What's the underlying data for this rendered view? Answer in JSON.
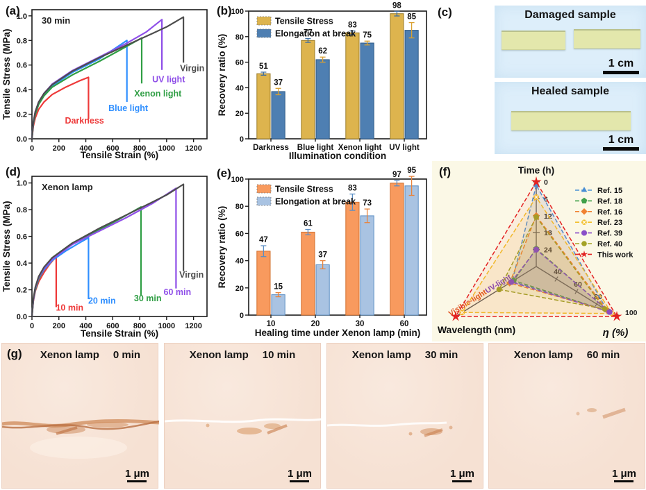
{
  "panel_letters": {
    "a": "(a)",
    "b": "(b)",
    "c": "(c)",
    "d": "(d)",
    "e": "(e)",
    "f": "(f)",
    "g": "(g)"
  },
  "chart_data": [
    {
      "id": "a",
      "type": "line",
      "annotation": "30 min",
      "xlabel": "Tensile Strain (%)",
      "ylabel": "Tensile Stress (MPa)",
      "xlim": [
        0,
        1300
      ],
      "ylim": [
        0,
        1.05
      ],
      "xticks": [
        0,
        200,
        400,
        600,
        800,
        1000,
        1200
      ],
      "yticks": [
        "0.0",
        "0.2",
        "0.4",
        "0.6",
        "0.8",
        "1.0"
      ],
      "series": [
        {
          "name": "Darkness",
          "color": "#ee3a3a",
          "drop_to": 0.16,
          "label_at": [
            390,
            0.125
          ],
          "points": [
            [
              0,
              0
            ],
            [
              10,
              0.1
            ],
            [
              25,
              0.17
            ],
            [
              50,
              0.24
            ],
            [
              90,
              0.3
            ],
            [
              150,
              0.36
            ],
            [
              250,
              0.42
            ],
            [
              350,
              0.47
            ],
            [
              420,
              0.5
            ]
          ]
        },
        {
          "name": "Blue light",
          "color": "#2f8fff",
          "drop_to": 0.3,
          "label_at": [
            715,
            0.225
          ],
          "points": [
            [
              0,
              0
            ],
            [
              10,
              0.12
            ],
            [
              25,
              0.21
            ],
            [
              50,
              0.29
            ],
            [
              90,
              0.36
            ],
            [
              150,
              0.43
            ],
            [
              300,
              0.54
            ],
            [
              500,
              0.65
            ],
            [
              705,
              0.8
            ]
          ]
        },
        {
          "name": "Xenon light",
          "color": "#2f9e44",
          "drop_to": 0.45,
          "label_at": [
            935,
            0.345
          ],
          "points": [
            [
              0,
              0
            ],
            [
              10,
              0.12
            ],
            [
              25,
              0.2
            ],
            [
              50,
              0.28
            ],
            [
              90,
              0.35
            ],
            [
              150,
              0.42
            ],
            [
              300,
              0.52
            ],
            [
              500,
              0.63
            ],
            [
              650,
              0.72
            ],
            [
              815,
              0.82
            ]
          ]
        },
        {
          "name": "UV light",
          "color": "#8f4fe8",
          "drop_to": 0.56,
          "label_at": [
            1015,
            0.46
          ],
          "points": [
            [
              0,
              0
            ],
            [
              10,
              0.13
            ],
            [
              25,
              0.22
            ],
            [
              50,
              0.3
            ],
            [
              90,
              0.37
            ],
            [
              150,
              0.445
            ],
            [
              300,
              0.555
            ],
            [
              500,
              0.665
            ],
            [
              700,
              0.775
            ],
            [
              850,
              0.87
            ],
            [
              965,
              0.97
            ]
          ]
        },
        {
          "name": "Virgin",
          "color": "#4d4d4d",
          "drop_to": 0.62,
          "label_at": [
            1190,
            0.55
          ],
          "points": [
            [
              0,
              0
            ],
            [
              10,
              0.13
            ],
            [
              25,
              0.22
            ],
            [
              50,
              0.3
            ],
            [
              90,
              0.37
            ],
            [
              150,
              0.44
            ],
            [
              300,
              0.55
            ],
            [
              500,
              0.66
            ],
            [
              700,
              0.76
            ],
            [
              900,
              0.86
            ],
            [
              1000,
              0.91
            ],
            [
              1125,
              0.99
            ]
          ]
        }
      ]
    },
    {
      "id": "b",
      "type": "bar",
      "xlabel": "Illumination condition",
      "ylabel": "Recovery ratio (%)",
      "ylim": [
        0,
        100
      ],
      "yticks": [
        0,
        20,
        40,
        60,
        80,
        100
      ],
      "categories": [
        "Darkness",
        "Blue light",
        "Xenon light",
        "UV light"
      ],
      "series": [
        {
          "name": "Tensile Stress",
          "color": "#ddb44e",
          "edge": "#9c7d2a",
          "err_color": "#3f6ea0",
          "values": [
            51,
            77,
            83,
            98
          ],
          "errors": [
            1.2,
            1.5,
            1.5,
            1.8
          ]
        },
        {
          "name": "Elongation at break",
          "color": "#4e7fb2",
          "edge": "#2f5a86",
          "err_color": "#d9a030",
          "values": [
            37,
            62,
            75,
            85
          ],
          "errors": [
            2.5,
            2,
            1.5,
            6
          ]
        }
      ]
    },
    {
      "id": "d",
      "type": "line",
      "annotation": "Xenon lamp",
      "xlabel": "Tensile Strain (%)",
      "ylabel": "Tensile Stress (MPa)",
      "xlim": [
        0,
        1300
      ],
      "ylim": [
        0,
        1.05
      ],
      "xticks": [
        0,
        200,
        400,
        600,
        800,
        1000,
        1200
      ],
      "yticks": [
        "0.0",
        "0.2",
        "0.4",
        "0.6",
        "0.8",
        "1.0"
      ],
      "series": [
        {
          "name": "10 min",
          "color": "#ee3a3a",
          "drop_to": 0.07,
          "label_at": [
            280,
            0.045
          ],
          "points": [
            [
              0,
              0
            ],
            [
              10,
              0.11
            ],
            [
              25,
              0.19
            ],
            [
              50,
              0.26
            ],
            [
              90,
              0.33
            ],
            [
              130,
              0.39
            ],
            [
              180,
              0.45
            ]
          ]
        },
        {
          "name": "20 min",
          "color": "#2f8fff",
          "drop_to": 0.13,
          "label_at": [
            520,
            0.095
          ],
          "points": [
            [
              0,
              0
            ],
            [
              10,
              0.12
            ],
            [
              25,
              0.2
            ],
            [
              50,
              0.28
            ],
            [
              90,
              0.35
            ],
            [
              150,
              0.42
            ],
            [
              250,
              0.49
            ],
            [
              350,
              0.55
            ],
            [
              420,
              0.59
            ]
          ]
        },
        {
          "name": "30 min",
          "color": "#2f9e44",
          "drop_to": 0.16,
          "label_at": [
            860,
            0.115
          ],
          "points": [
            [
              0,
              0
            ],
            [
              10,
              0.12
            ],
            [
              25,
              0.2
            ],
            [
              50,
              0.28
            ],
            [
              90,
              0.36
            ],
            [
              150,
              0.44
            ],
            [
              300,
              0.55
            ],
            [
              500,
              0.65
            ],
            [
              650,
              0.73
            ],
            [
              810,
              0.82
            ]
          ]
        },
        {
          "name": "60 min",
          "color": "#8f4fe8",
          "drop_to": 0.21,
          "label_at": [
            1080,
            0.16
          ],
          "points": [
            [
              0,
              0
            ],
            [
              10,
              0.12
            ],
            [
              25,
              0.21
            ],
            [
              50,
              0.29
            ],
            [
              90,
              0.36
            ],
            [
              150,
              0.43
            ],
            [
              300,
              0.54
            ],
            [
              500,
              0.64
            ],
            [
              700,
              0.74
            ],
            [
              900,
              0.85
            ],
            [
              1070,
              0.96
            ]
          ]
        },
        {
          "name": "Virgin",
          "color": "#4d4d4d",
          "drop_to": 0.34,
          "label_at": [
            1185,
            0.29
          ],
          "points": [
            [
              0,
              0
            ],
            [
              10,
              0.13
            ],
            [
              25,
              0.22
            ],
            [
              50,
              0.3
            ],
            [
              90,
              0.37
            ],
            [
              150,
              0.44
            ],
            [
              300,
              0.55
            ],
            [
              500,
              0.66
            ],
            [
              700,
              0.76
            ],
            [
              900,
              0.86
            ],
            [
              1000,
              0.91
            ],
            [
              1125,
              0.99
            ]
          ]
        }
      ]
    },
    {
      "id": "e",
      "type": "bar",
      "xlabel": "Healing time under Xenon lamp (min)",
      "ylabel": "Recovery ratio (%)",
      "ylim": [
        0,
        100
      ],
      "yticks": [
        0,
        20,
        40,
        60,
        80,
        100
      ],
      "categories": [
        "10",
        "20",
        "30",
        "60"
      ],
      "series": [
        {
          "name": "Tensile Stress",
          "color": "#f89a5e",
          "edge": "#d2702e",
          "err_color": "#5b8ec4",
          "values": [
            47,
            61,
            83,
            97
          ],
          "errors": [
            4,
            2,
            6,
            2
          ]
        },
        {
          "name": "Elongation at break",
          "color": "#a9c3e2",
          "edge": "#5b8ec4",
          "err_color": "#e8833c",
          "values": [
            15,
            37,
            73,
            95
          ],
          "errors": [
            1.5,
            3,
            5,
            7
          ]
        }
      ]
    },
    {
      "id": "f",
      "type": "radar",
      "background": "#fbf8e6",
      "axes": [
        {
          "label": "Time (h)",
          "ticks": [
            0,
            6,
            12,
            18,
            24
          ]
        },
        {
          "label": "Wavelength (nm)",
          "sub_labels": [
            {
              "text": "Visible-light",
              "color": "#e0501e"
            },
            {
              "text": "UV-light",
              "color": "#7a3fc0"
            }
          ]
        },
        {
          "label": "η (%)",
          "ticks": [
            40,
            60,
            80,
            100
          ]
        }
      ],
      "series": [
        {
          "name": "Ref. 15",
          "color": "#4a8fd4",
          "marker": "triangle",
          "time_h": 1,
          "wavelength": "UV-light",
          "eta_pct": 90,
          "poly": [
            0.96,
            0.3,
            0.88
          ]
        },
        {
          "name": "Ref. 18",
          "color": "#3fa04a",
          "marker": "pentagon",
          "time_h": 24,
          "wavelength": "UV-light",
          "eta_pct": 92,
          "poly": [
            0.21,
            0.28,
            0.9
          ]
        },
        {
          "name": "Ref. 16",
          "color": "#f08232",
          "marker": "diamond",
          "time_h": 12,
          "wavelength": "UV-light",
          "eta_pct": 90,
          "poly": [
            0.6,
            0.33,
            0.88
          ]
        },
        {
          "name": "Ref. 23",
          "color": "#f2bf2a",
          "marker": "circle-x",
          "time_h": 5,
          "wavelength": "Visible-light",
          "eta_pct": 95,
          "poly": [
            0.82,
            0.92,
            0.94
          ]
        },
        {
          "name": "Ref. 39",
          "color": "#8a4fc8",
          "marker": "octagon",
          "time_h": 24,
          "wavelength": "UV-light",
          "eta_pct": 93,
          "poly": [
            0.2,
            0.31,
            0.91
          ]
        },
        {
          "name": "Ref. 40",
          "color": "#a3a226",
          "marker": "circle",
          "time_h": 12,
          "wavelength": "UV-light",
          "eta_pct": 88,
          "poly": [
            0.585,
            0.46,
            0.85
          ]
        },
        {
          "name": "This work",
          "color": "#e32222",
          "marker": "star",
          "time_h": 0,
          "wavelength": "Visible-light",
          "eta_pct": 100,
          "poly": [
            1.0,
            1.0,
            1.0
          ]
        }
      ]
    }
  ],
  "panel_c": {
    "photos": [
      {
        "title": "Damaged sample",
        "scale_label": "1 cm",
        "pieces": 2
      },
      {
        "title": "Healed sample",
        "scale_label": "1 cm",
        "pieces": 1
      }
    ]
  },
  "panel_g": {
    "tiles": [
      {
        "lamp": "Xenon lamp",
        "time": "0 min",
        "scale_label": "1 μm"
      },
      {
        "lamp": "Xenon lamp",
        "time": "10 min",
        "scale_label": "1 μm"
      },
      {
        "lamp": "Xenon lamp",
        "time": "30 min",
        "scale_label": "1 μm"
      },
      {
        "lamp": "Xenon lamp",
        "time": "60 min",
        "scale_label": "1 μm"
      }
    ]
  }
}
